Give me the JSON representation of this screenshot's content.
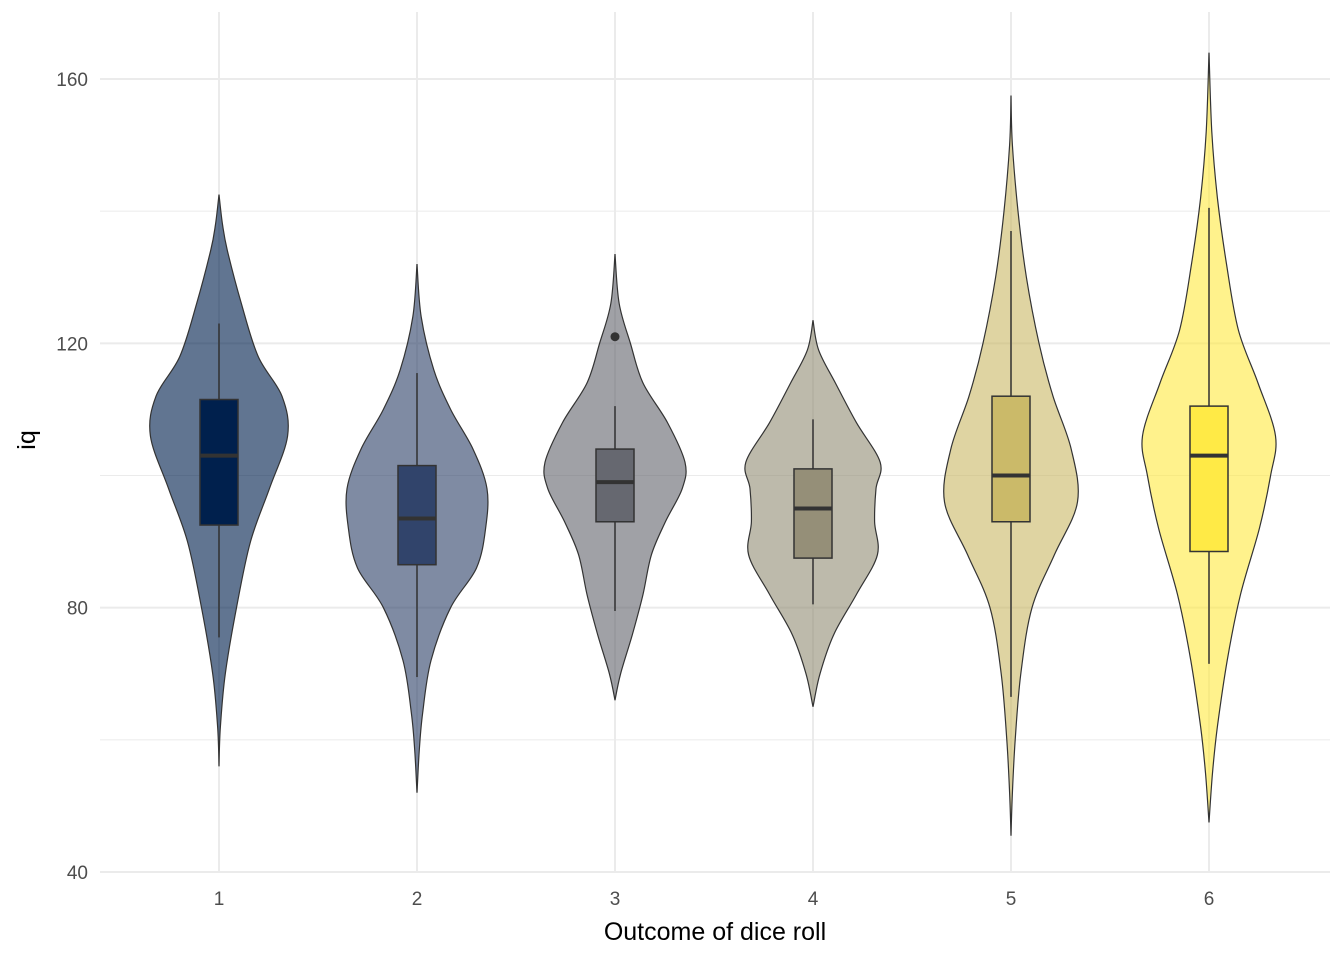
{
  "chart_data": {
    "type": "violin",
    "title": "",
    "xlabel": "Outcome of dice roll",
    "ylabel": "iq",
    "categories": [
      "1",
      "2",
      "3",
      "4",
      "5",
      "6"
    ],
    "ylim": [
      30,
      170
    ],
    "yticks": [
      40,
      80,
      120,
      160
    ],
    "grid": true,
    "legend": "none",
    "colors": [
      "#00204d",
      "#31446b",
      "#666870",
      "#958f78",
      "#cbba69",
      "#ffea46"
    ],
    "series": [
      {
        "category": "1",
        "box": {
          "lower_whisker": 75.5,
          "q1": 92.5,
          "median": 103,
          "q3": 111.5,
          "upper_whisker": 123
        },
        "outliers": [],
        "density": {
          "min": 56,
          "max": 142.5,
          "y": [
            56,
            62,
            70,
            80,
            90,
            98,
            106,
            112,
            118,
            126,
            134,
            138,
            142.5
          ],
          "w": [
            0,
            0.02,
            0.09,
            0.25,
            0.45,
            0.72,
            0.98,
            0.9,
            0.56,
            0.32,
            0.12,
            0.05,
            0
          ]
        }
      },
      {
        "category": "2",
        "box": {
          "lower_whisker": 69.5,
          "q1": 86.5,
          "median": 93.5,
          "q3": 101.5,
          "upper_whisker": 115.5
        },
        "outliers": [],
        "density": {
          "min": 52,
          "max": 132,
          "y": [
            52,
            58,
            64,
            72,
            80,
            86,
            92,
            98,
            104,
            110,
            116,
            124,
            132
          ],
          "w": [
            0,
            0.03,
            0.08,
            0.2,
            0.48,
            0.85,
            0.98,
            1.0,
            0.8,
            0.48,
            0.24,
            0.06,
            0
          ]
        }
      },
      {
        "category": "3",
        "box": {
          "lower_whisker": 79.5,
          "q1": 93,
          "median": 99,
          "q3": 104,
          "upper_whisker": 110.5
        },
        "outliers": [
          121
        ],
        "density": {
          "min": 66,
          "max": 133.5,
          "y": [
            66,
            70,
            76,
            82,
            88,
            93,
            98,
            102,
            108,
            114,
            120,
            126,
            133.5
          ],
          "w": [
            0,
            0.08,
            0.25,
            0.4,
            0.52,
            0.72,
            0.96,
            1.0,
            0.75,
            0.4,
            0.22,
            0.06,
            0
          ]
        }
      },
      {
        "category": "4",
        "box": {
          "lower_whisker": 80.5,
          "q1": 87.5,
          "median": 95,
          "q3": 101,
          "upper_whisker": 108.5
        },
        "outliers": [],
        "density": {
          "min": 65,
          "max": 123.5,
          "y": [
            65,
            70,
            76,
            82,
            88,
            93,
            98,
            102,
            108,
            114,
            119,
            123.5
          ],
          "w": [
            0,
            0.1,
            0.3,
            0.62,
            0.92,
            0.88,
            0.9,
            0.96,
            0.62,
            0.32,
            0.08,
            0
          ]
        }
      },
      {
        "category": "5",
        "box": {
          "lower_whisker": 66.5,
          "q1": 93,
          "median": 100,
          "q3": 112,
          "upper_whisker": 137
        },
        "outliers": [],
        "density": {
          "min": 45.5,
          "max": 157.5,
          "y": [
            45.5,
            52,
            60,
            70,
            80,
            88,
            96,
            104,
            112,
            120,
            130,
            140,
            150,
            157.5
          ],
          "w": [
            0,
            0.02,
            0.06,
            0.14,
            0.3,
            0.62,
            0.95,
            0.86,
            0.6,
            0.4,
            0.22,
            0.1,
            0.02,
            0
          ]
        }
      },
      {
        "category": "6",
        "box": {
          "lower_whisker": 71.5,
          "q1": 88.5,
          "median": 103,
          "q3": 110.5,
          "upper_whisker": 140.5
        },
        "outliers": [],
        "density": {
          "min": 47.5,
          "max": 164,
          "y": [
            47.5,
            55,
            62,
            72,
            82,
            92,
            100,
            106,
            114,
            122,
            132,
            142,
            152,
            164
          ],
          "w": [
            0,
            0.05,
            0.12,
            0.26,
            0.45,
            0.72,
            0.88,
            0.95,
            0.7,
            0.42,
            0.25,
            0.12,
            0.04,
            0
          ]
        }
      }
    ]
  }
}
